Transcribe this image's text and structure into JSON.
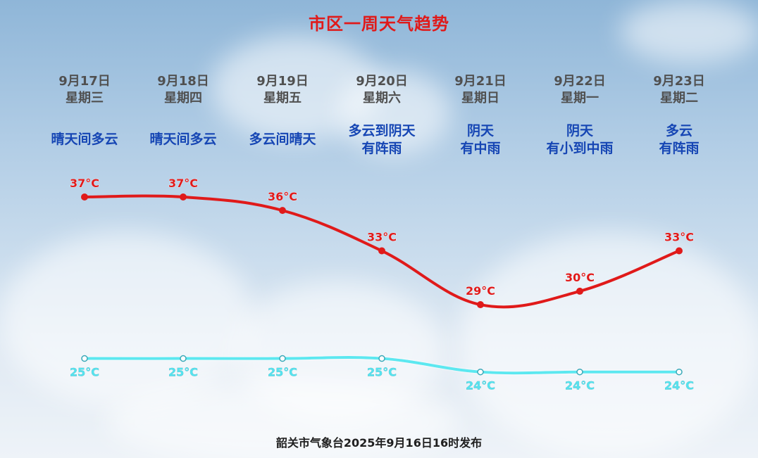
{
  "title": "市区一周天气趋势",
  "days": [
    {
      "date": "9月17日",
      "weekday": "星期三",
      "weather": [
        "晴天间多云"
      ]
    },
    {
      "date": "9月18日",
      "weekday": "星期四",
      "weather": [
        "晴天间多云"
      ]
    },
    {
      "date": "9月19日",
      "weekday": "星期五",
      "weather": [
        "多云间晴天"
      ]
    },
    {
      "date": "9月20日",
      "weekday": "星期六",
      "weather": [
        "多云到阴天",
        "有阵雨"
      ]
    },
    {
      "date": "9月21日",
      "weekday": "星期日",
      "weather": [
        "阴天",
        "有中雨"
      ]
    },
    {
      "date": "9月22日",
      "weekday": "星期一",
      "weather": [
        "阴天",
        "有小到中雨"
      ]
    },
    {
      "date": "9月23日",
      "weekday": "星期二",
      "weather": [
        "多云",
        "有阵雨"
      ]
    }
  ],
  "chart_data": {
    "type": "line",
    "categories": [
      "9月17日",
      "9月18日",
      "9月19日",
      "9月20日",
      "9月21日",
      "9月22日",
      "9月23日"
    ],
    "unit": "°C",
    "grid": false,
    "series": [
      {
        "name": "",
        "values": [
          37,
          37,
          36,
          33,
          29,
          30,
          33
        ],
        "color": "#e01a1a",
        "labels": [
          "37°C",
          "37°C",
          "36°C",
          "33°C",
          "29°C",
          "30°C",
          "33°C"
        ]
      },
      {
        "name": "",
        "values": [
          25,
          25,
          25,
          25,
          24,
          24,
          24
        ],
        "color": "#5ce8f0",
        "labels": [
          "25°C",
          "25°C",
          "25°C",
          "25°C",
          "24°C",
          "24°C",
          "24°C"
        ]
      }
    ]
  },
  "footer": "韶关市气象台2025年9月16日16时发布"
}
